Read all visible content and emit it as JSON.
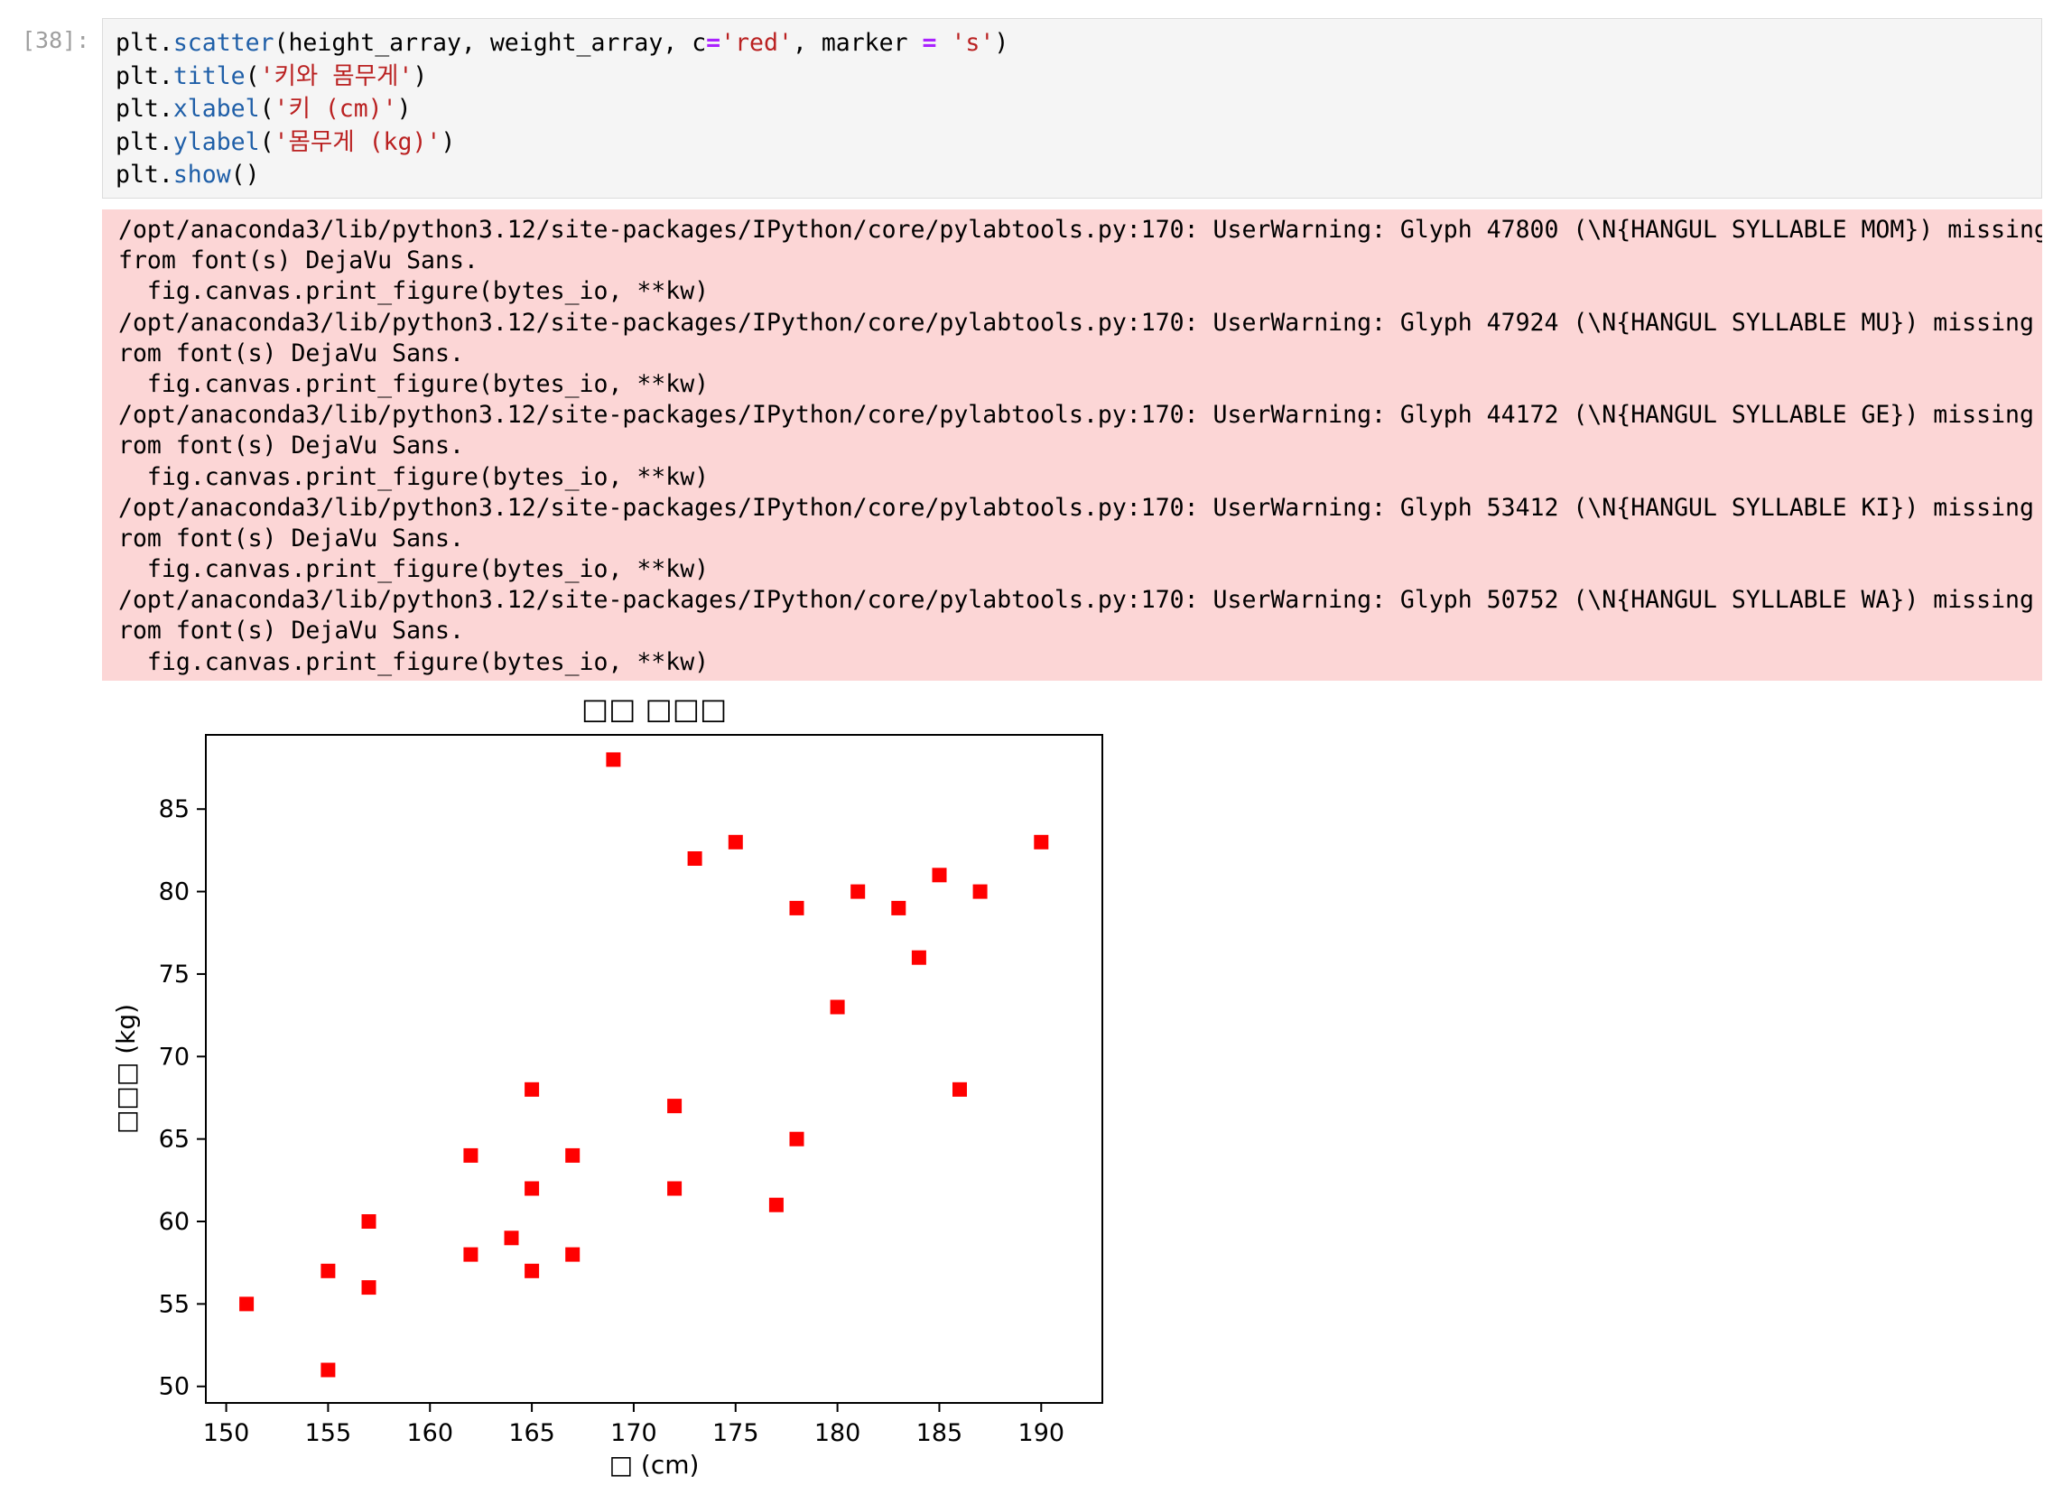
{
  "cell": {
    "prompt": "[38]:",
    "code_lines": [
      [
        {
          "t": "plt."
        },
        {
          "t": "scatter",
          "c": "fn"
        },
        {
          "t": "(height_array, weight_array, c"
        },
        {
          "t": "=",
          "c": "op"
        },
        {
          "t": "'red'",
          "c": "str"
        },
        {
          "t": ", marker "
        },
        {
          "t": "=",
          "c": "op"
        },
        {
          "t": " "
        },
        {
          "t": "'s'",
          "c": "str"
        },
        {
          "t": ")"
        }
      ],
      [
        {
          "t": "plt."
        },
        {
          "t": "title",
          "c": "fn"
        },
        {
          "t": "("
        },
        {
          "t": "'키와 몸무게'",
          "c": "str"
        },
        {
          "t": ")"
        }
      ],
      [
        {
          "t": "plt."
        },
        {
          "t": "xlabel",
          "c": "fn"
        },
        {
          "t": "("
        },
        {
          "t": "'키 (cm)'",
          "c": "str"
        },
        {
          "t": ")"
        }
      ],
      [
        {
          "t": "plt."
        },
        {
          "t": "ylabel",
          "c": "fn"
        },
        {
          "t": "("
        },
        {
          "t": "'몸무게 (kg)'",
          "c": "str"
        },
        {
          "t": ")"
        }
      ],
      [
        {
          "t": "plt."
        },
        {
          "t": "show",
          "c": "fn"
        },
        {
          "t": "()"
        }
      ]
    ]
  },
  "stderr_lines": [
    "/opt/anaconda3/lib/python3.12/site-packages/IPython/core/pylabtools.py:170: UserWarning: Glyph 47800 (\\N{HANGUL SYLLABLE MOM}) missing",
    "from font(s) DejaVu Sans.",
    "  fig.canvas.print_figure(bytes_io, **kw)",
    "/opt/anaconda3/lib/python3.12/site-packages/IPython/core/pylabtools.py:170: UserWarning: Glyph 47924 (\\N{HANGUL SYLLABLE MU}) missing f",
    "rom font(s) DejaVu Sans.",
    "  fig.canvas.print_figure(bytes_io, **kw)",
    "/opt/anaconda3/lib/python3.12/site-packages/IPython/core/pylabtools.py:170: UserWarning: Glyph 44172 (\\N{HANGUL SYLLABLE GE}) missing f",
    "rom font(s) DejaVu Sans.",
    "  fig.canvas.print_figure(bytes_io, **kw)",
    "/opt/anaconda3/lib/python3.12/site-packages/IPython/core/pylabtools.py:170: UserWarning: Glyph 53412 (\\N{HANGUL SYLLABLE KI}) missing f",
    "rom font(s) DejaVu Sans.",
    "  fig.canvas.print_figure(bytes_io, **kw)",
    "/opt/anaconda3/lib/python3.12/site-packages/IPython/core/pylabtools.py:170: UserWarning: Glyph 50752 (\\N{HANGUL SYLLABLE WA}) missing f",
    "rom font(s) DejaVu Sans.",
    "  fig.canvas.print_figure(bytes_io, **kw)"
  ],
  "chart_data": {
    "type": "scatter",
    "title": "□□ □□□",
    "xlabel": "□ (cm)",
    "ylabel": "□□□ (kg)",
    "marker": "s",
    "color": "#ff0000",
    "xlim": [
      149,
      193
    ],
    "ylim": [
      49,
      89.5
    ],
    "xticks": [
      150,
      155,
      160,
      165,
      170,
      175,
      180,
      185,
      190
    ],
    "yticks": [
      50,
      55,
      60,
      65,
      70,
      75,
      80,
      85
    ],
    "grid": false,
    "points": [
      [
        151,
        55
      ],
      [
        155,
        57
      ],
      [
        155,
        51
      ],
      [
        157,
        60
      ],
      [
        157,
        56
      ],
      [
        162,
        64
      ],
      [
        162,
        58
      ],
      [
        164,
        59
      ],
      [
        165,
        68
      ],
      [
        165,
        62
      ],
      [
        165,
        57
      ],
      [
        167,
        64
      ],
      [
        167,
        58
      ],
      [
        169,
        88
      ],
      [
        172,
        67
      ],
      [
        172,
        62
      ],
      [
        173,
        82
      ],
      [
        175,
        83
      ],
      [
        177,
        61
      ],
      [
        178,
        79
      ],
      [
        178,
        65
      ],
      [
        180,
        73
      ],
      [
        181,
        80
      ],
      [
        183,
        79
      ],
      [
        184,
        76
      ],
      [
        185,
        81
      ],
      [
        186,
        68
      ],
      [
        187,
        80
      ],
      [
        190,
        83
      ]
    ]
  }
}
